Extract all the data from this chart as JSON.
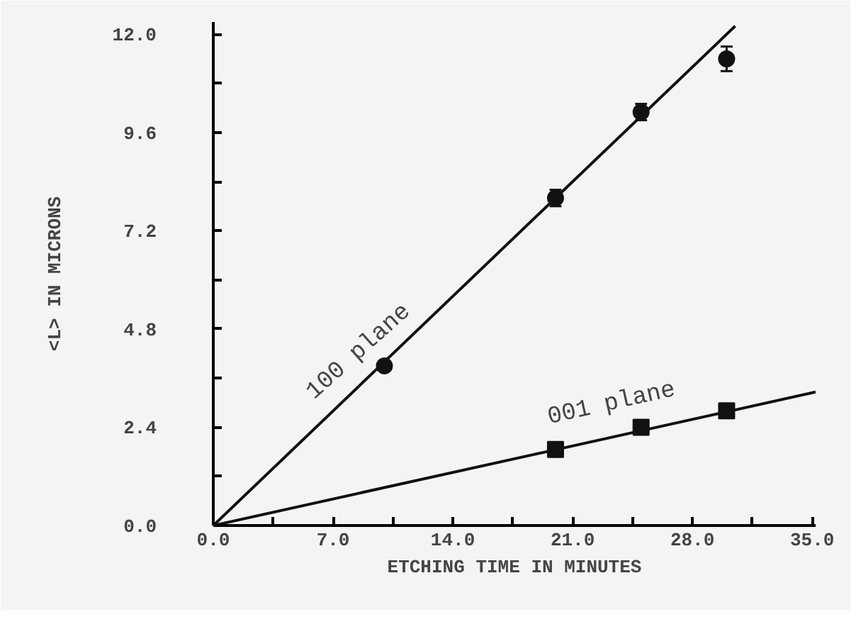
{
  "chart_data": {
    "type": "scatter",
    "xlabel": "ETCHING TIME IN MINUTES",
    "ylabel": "<L> IN MICRONS",
    "xlim": [
      0,
      35.2
    ],
    "ylim": [
      0,
      12.3
    ],
    "xticks": [
      {
        "value": 0,
        "label": "0.0"
      },
      {
        "value": 3.5,
        "label": null
      },
      {
        "value": 7,
        "label": "7.0"
      },
      {
        "value": 10.5,
        "label": null
      },
      {
        "value": 14,
        "label": "14.0"
      },
      {
        "value": 17.5,
        "label": null
      },
      {
        "value": 21,
        "label": "21.0"
      },
      {
        "value": 24.5,
        "label": null
      },
      {
        "value": 28,
        "label": "28.0"
      },
      {
        "value": 31.5,
        "label": null
      },
      {
        "value": 35,
        "label": "35.0"
      }
    ],
    "yticks": [
      {
        "value": 0,
        "label": "0.0"
      },
      {
        "value": 1.2,
        "label": null
      },
      {
        "value": 2.4,
        "label": "2.4"
      },
      {
        "value": 3.6,
        "label": null
      },
      {
        "value": 4.8,
        "label": "4.8"
      },
      {
        "value": 6.0,
        "label": null
      },
      {
        "value": 7.2,
        "label": "7.2"
      },
      {
        "value": 8.4,
        "label": null
      },
      {
        "value": 9.6,
        "label": "9.6"
      },
      {
        "value": 10.8,
        "label": null
      },
      {
        "value": 12,
        "label": "12.0"
      }
    ],
    "grid": false,
    "series": [
      {
        "name": "100 plane",
        "color": "#111111",
        "marker": "circle",
        "x": [
          10,
          20,
          25,
          30
        ],
        "values": [
          3.9,
          8.0,
          10.1,
          11.4
        ],
        "errors": [
          0.1,
          0.2,
          0.2,
          0.3
        ]
      },
      {
        "type": "line",
        "color": "#111111",
        "x": [
          0,
          30.5
        ],
        "values": [
          0,
          12.2
        ]
      },
      {
        "name": "001 plane",
        "color": "#111111",
        "marker": "square",
        "x": [
          20,
          25,
          30
        ],
        "values": [
          1.86,
          2.4,
          2.8
        ]
      },
      {
        "type": "line",
        "color": "#111111",
        "x": [
          0,
          35.2
        ],
        "values": [
          0,
          3.26
        ]
      }
    ]
  }
}
